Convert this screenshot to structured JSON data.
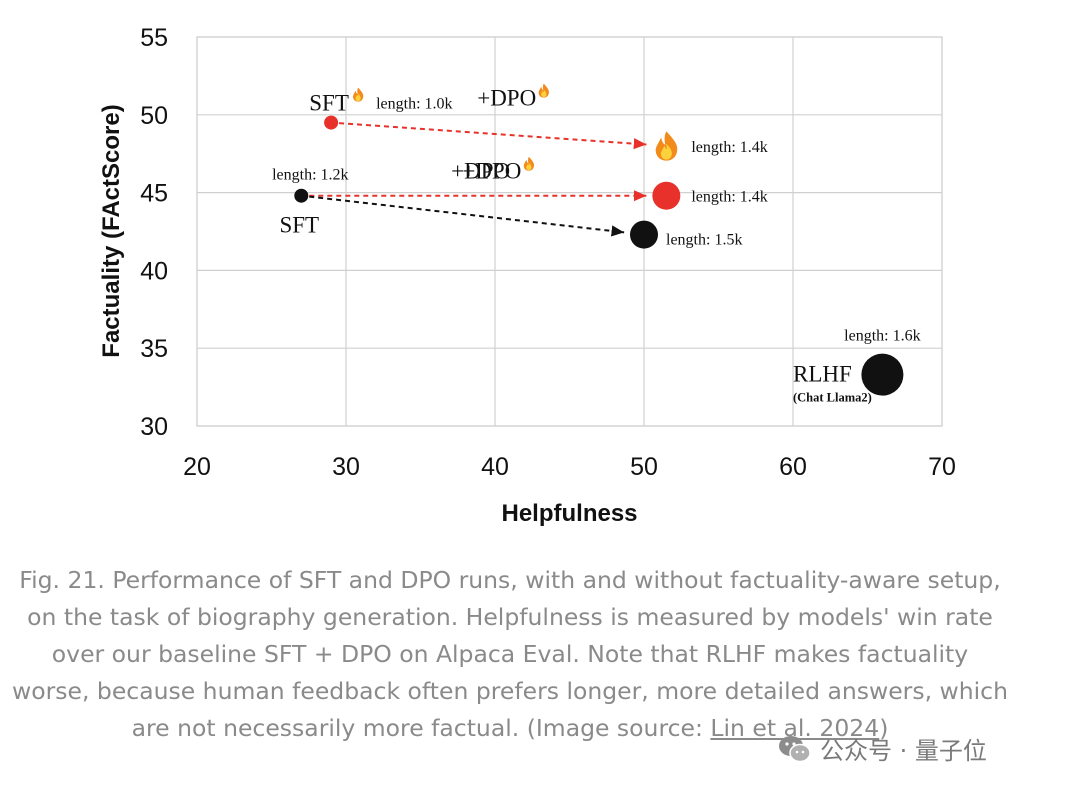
{
  "chart_data": {
    "type": "scatter",
    "xlabel": "Helpfulness",
    "ylabel": "Factuality (FActScore)",
    "xlim": [
      20,
      70
    ],
    "ylim": [
      30,
      55
    ],
    "xticks": [
      "20",
      "30",
      "40",
      "50",
      "60",
      "70"
    ],
    "yticks": [
      "30",
      "35",
      "40",
      "45",
      "50",
      "55"
    ],
    "grid": true,
    "points": [
      {
        "id": "sft_fact",
        "x": 29,
        "y": 49.5,
        "color": "#e8312a",
        "size": "small",
        "label": "SFT",
        "fire_icon": true,
        "length": "length: 1.0k"
      },
      {
        "id": "dpo_from_sft_fact",
        "x": 51.5,
        "y": 48,
        "marker": "fire-icon",
        "length": "length: 1.4k"
      },
      {
        "id": "sft",
        "x": 27,
        "y": 44.8,
        "color": "#111111",
        "size": "small",
        "label": "SFT",
        "length": "length: 1.2k"
      },
      {
        "id": "dpo_fact_from_sft",
        "x": 51.5,
        "y": 44.8,
        "color": "#e8312a",
        "size": "medium",
        "length": "length: 1.4k"
      },
      {
        "id": "dpo",
        "x": 50,
        "y": 42.3,
        "color": "#111111",
        "size": "medium",
        "length": "length: 1.5k"
      },
      {
        "id": "rlhf",
        "x": 66,
        "y": 33.3,
        "color": "#111111",
        "size": "large",
        "label": "RLHF",
        "sublabel": "(Chat Llama2)",
        "length": "length: 1.6k"
      }
    ],
    "arrows": [
      {
        "from": "sft_fact",
        "to": "dpo_from_sft_fact",
        "color": "#e8312a",
        "label": "+DPO",
        "fire_icon": true
      },
      {
        "from": "sft",
        "to": "dpo_fact_from_sft",
        "color": "#e8312a",
        "label": "+DPO",
        "fire_icon": true
      },
      {
        "from": "sft",
        "to": "dpo",
        "color": "#111111",
        "label": "+DPO"
      }
    ]
  },
  "caption": {
    "text": "Fig. 21. Performance of SFT and DPO runs, with and without factuality-aware setup, on the task of biography generation. Helpfulness is measured by models' win rate over our baseline SFT + DPO on Alpaca Eval. Note that RLHF makes factuality worse, because human feedback often prefers longer, more detailed answers, which are not necessarily more factual. (Image source: ",
    "link_text": "Lin et al. 2024",
    "closing": ")"
  },
  "watermark": {
    "text": "公众号 · 量子位",
    "icon": "wechat-icon"
  }
}
